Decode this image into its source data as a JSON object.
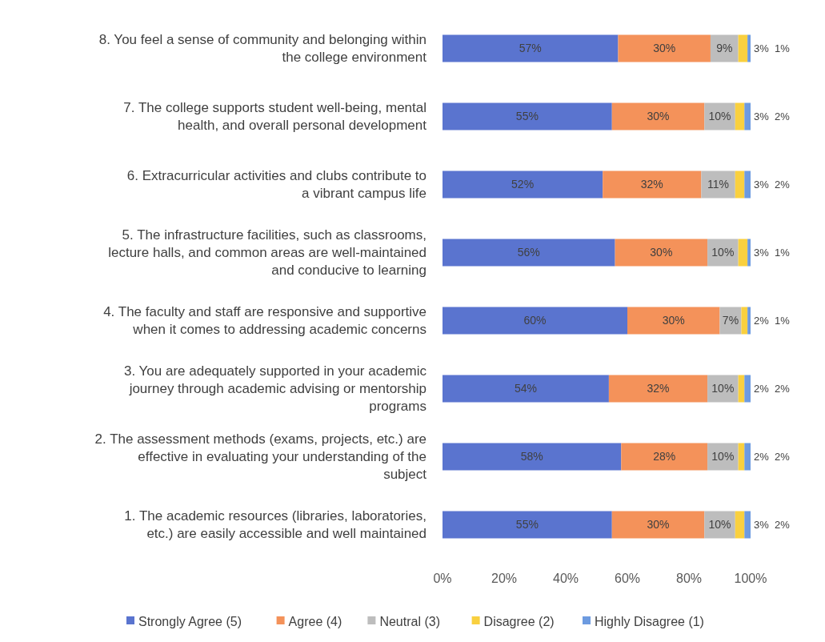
{
  "chart_data": {
    "type": "bar",
    "orientation": "horizontal",
    "stacked": true,
    "legend": "bottom",
    "grid": false,
    "categories": [
      "8. You feel a sense of community and belonging within the college environment",
      "7. The college supports student well-being, mental health, and overall personal development",
      "6. Extracurricular activities and clubs contribute to a vibrant campus life",
      "5. The infrastructure facilities, such as classrooms, lecture halls, and common areas are well-maintained and conducive to learning",
      "4. The faculty and staff are responsive and supportive when it comes to addressing academic concerns",
      "3. You are adequately supported in your academic journey through academic advising or mentorship programs",
      "2. The assessment methods (exams, projects, etc.) are effective in evaluating your understanding of the subject",
      "1. The academic resources (libraries, laboratories, etc.) are easily accessible and well maintained"
    ],
    "xlim": [
      0,
      100
    ],
    "xticks": [
      {
        "value": 0,
        "label": "0%"
      },
      {
        "value": 20,
        "label": "20%"
      },
      {
        "value": 40,
        "label": "40%"
      },
      {
        "value": 60,
        "label": "60%"
      },
      {
        "value": 80,
        "label": "80%"
      },
      {
        "value": 100,
        "label": "100%"
      }
    ],
    "series": [
      {
        "name": "Strongly Agree (5)",
        "color": "#5a74cf",
        "values": [
          57,
          55,
          52,
          56,
          60,
          54,
          58,
          55
        ],
        "value_labels": [
          "57%",
          "55%",
          "52%",
          "56%",
          "60%",
          "54%",
          "58%",
          "55%"
        ]
      },
      {
        "name": "Agree (4)",
        "color": "#f4925a",
        "values": [
          30,
          30,
          32,
          30,
          30,
          32,
          28,
          30
        ],
        "value_labels": [
          "30%",
          "30%",
          "32%",
          "30%",
          "30%",
          "32%",
          "28%",
          "30%"
        ]
      },
      {
        "name": "Neutral (3)",
        "color": "#bdbdbd",
        "values": [
          9,
          10,
          11,
          10,
          7,
          10,
          10,
          10
        ],
        "value_labels": [
          "9%",
          "10%",
          "11%",
          "10%",
          "7%",
          "10%",
          "10%",
          "10%"
        ]
      },
      {
        "name": "Disagree (2)",
        "color": "#f9d03f",
        "values": [
          3,
          3,
          3,
          3,
          2,
          2,
          2,
          3
        ],
        "value_labels": [
          "3%",
          "3%",
          "3%",
          "3%",
          "2%",
          "2%",
          "2%",
          "3%"
        ]
      },
      {
        "name": "Highly Disagree (1)",
        "color": "#6d9be0",
        "values": [
          1,
          2,
          2,
          1,
          1,
          2,
          2,
          2
        ],
        "value_labels": [
          "1%",
          "2%",
          "2%",
          "1%",
          "1%",
          "2%",
          "2%",
          "2%"
        ]
      }
    ]
  }
}
